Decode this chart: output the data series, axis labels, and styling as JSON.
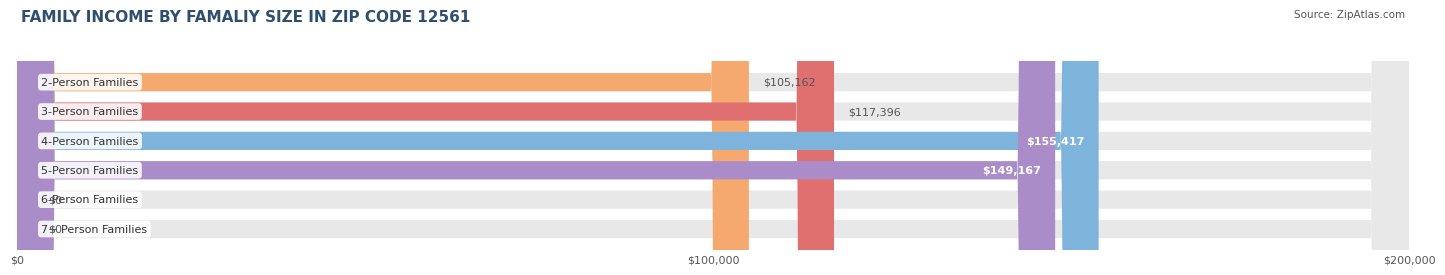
{
  "title": "FAMILY INCOME BY FAMALIY SIZE IN ZIP CODE 12561",
  "source": "Source: ZipAtlas.com",
  "categories": [
    "2-Person Families",
    "3-Person Families",
    "4-Person Families",
    "5-Person Families",
    "6-Person Families",
    "7+ Person Families"
  ],
  "values": [
    105162,
    117396,
    155417,
    149167,
    0,
    0
  ],
  "bar_colors": [
    "#F5A96E",
    "#E07070",
    "#7EB3DC",
    "#A98CC8",
    "#6CC9BE",
    "#A8A8D8"
  ],
  "value_label_inside": [
    false,
    false,
    true,
    true,
    false,
    false
  ],
  "xlim": [
    0,
    200000
  ],
  "xticks": [
    0,
    100000,
    200000
  ],
  "xtick_labels": [
    "$0",
    "$100,000",
    "$200,000"
  ],
  "label_fontsize": 8,
  "title_fontsize": 11,
  "background_color": "#ffffff",
  "bar_bg_color": "#E8E8E8",
  "bar_height": 0.62,
  "value_labels": [
    "$105,162",
    "$117,396",
    "$155,417",
    "$149,167",
    "$0",
    "$0"
  ]
}
